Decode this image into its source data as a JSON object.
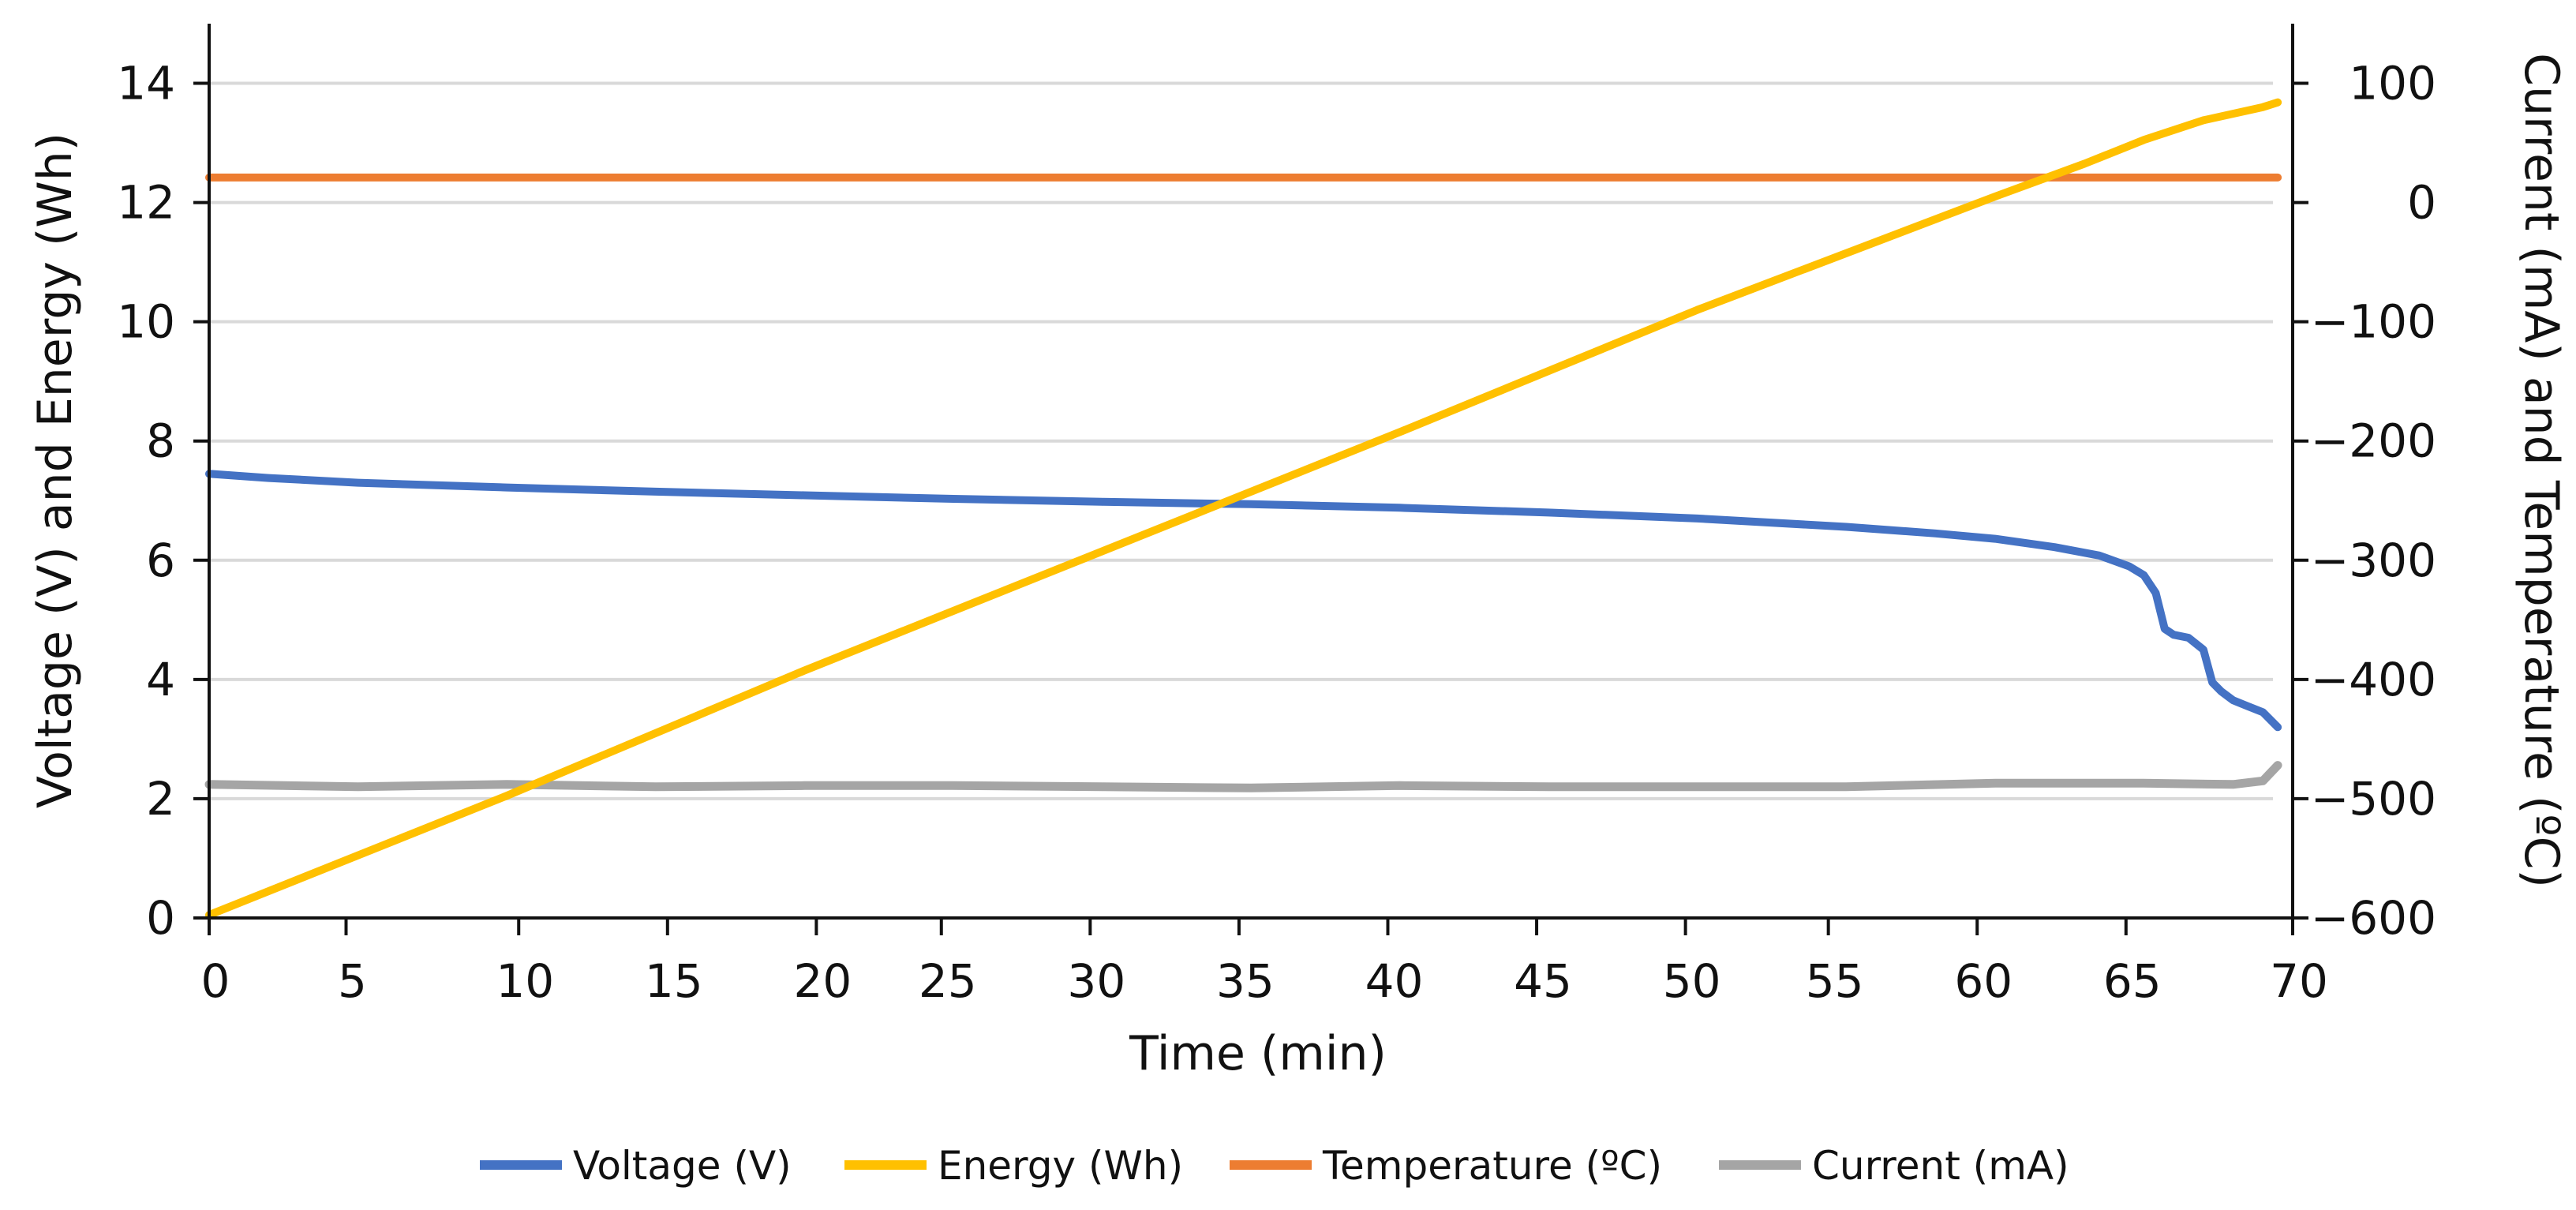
{
  "chart_data": {
    "type": "line",
    "title": "",
    "xlabel": "Time (min)",
    "ylabel_left": "Voltage (V) and Energy (Wh)",
    "ylabel_right": "Current (mA) and Temperature (ºC)",
    "xlim": [
      0,
      70
    ],
    "ylim_left": [
      0,
      15
    ],
    "ylim_right": [
      -600,
      150
    ],
    "grid": true,
    "legend_position": "bottom",
    "x_ticks": [
      0,
      5,
      10,
      15,
      20,
      25,
      30,
      35,
      40,
      45,
      50,
      55,
      60,
      65,
      70
    ],
    "x_tick_positions": [
      0,
      4.6,
      10.4,
      15.4,
      20.4,
      24.6,
      29.6,
      34.6,
      39.6,
      44.6,
      49.6,
      54.4,
      59.4,
      64.4,
      70
    ],
    "y_ticks_left": [
      0,
      2,
      4,
      6,
      8,
      10,
      12,
      14
    ],
    "y_ticks_right": [
      -600,
      -500,
      -400,
      -300,
      -200,
      -100,
      0,
      100
    ],
    "y_ticks_right_labels": [
      "−600",
      "−500",
      "−400",
      "−300",
      "−200",
      "−100",
      "0",
      "100"
    ],
    "series": [
      {
        "name": "Voltage (V)",
        "axis": "left",
        "color": "#4472C4",
        "x": [
          0,
          2,
          5,
          10,
          15,
          20,
          25,
          30,
          35,
          40,
          45,
          50,
          55,
          58,
          60,
          62,
          63.5,
          64.5,
          65,
          65.4,
          65.7,
          66,
          66.5,
          67,
          67.3,
          67.6,
          68,
          68.5,
          69,
          69.5
        ],
        "y": [
          7.45,
          7.38,
          7.3,
          7.22,
          7.15,
          7.09,
          7.03,
          6.98,
          6.94,
          6.88,
          6.8,
          6.7,
          6.56,
          6.45,
          6.36,
          6.22,
          6.08,
          5.9,
          5.75,
          5.45,
          4.85,
          4.75,
          4.7,
          4.5,
          3.95,
          3.8,
          3.65,
          3.55,
          3.45,
          3.2
        ]
      },
      {
        "name": "Energy (Wh)",
        "axis": "left",
        "color": "#FFC000",
        "x": [
          0,
          10,
          20,
          30,
          40,
          50,
          60,
          63,
          65,
          67,
          69,
          69.5
        ],
        "y": [
          0.05,
          2.05,
          4.15,
          6.15,
          8.15,
          10.2,
          12.1,
          12.65,
          13.05,
          13.38,
          13.6,
          13.68
        ]
      },
      {
        "name": "Temperature (ºC)",
        "axis": "right",
        "color": "#ED7D31",
        "x": [
          0,
          69.5
        ],
        "y": [
          21,
          21
        ]
      },
      {
        "name": "Current (mA)",
        "axis": "right",
        "color": "#A5A5A5",
        "x": [
          0,
          5,
          10,
          15,
          20,
          25,
          30,
          35,
          40,
          45,
          50,
          55,
          60,
          65,
          68,
          69,
          69.5
        ],
        "y": [
          -488,
          -490,
          -488,
          -490,
          -489,
          -489,
          -490,
          -491,
          -489,
          -490,
          -490,
          -490,
          -487,
          -487,
          -488,
          -485,
          -472
        ]
      }
    ],
    "legend": [
      "Voltage (V)",
      "Energy (Wh)",
      "Temperature (ºC)",
      "Current (mA)"
    ]
  }
}
